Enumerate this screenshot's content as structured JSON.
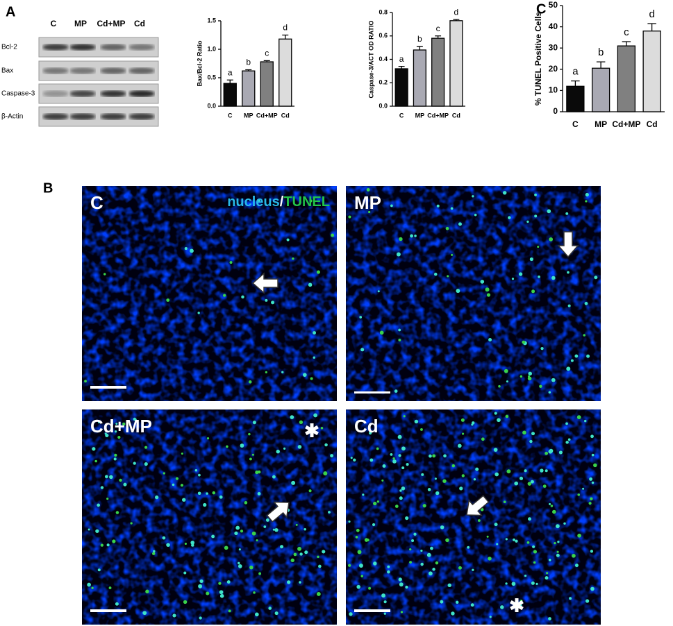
{
  "panels": {
    "a": "A",
    "b": "B",
    "c": "C"
  },
  "blot": {
    "columns": [
      "C",
      "MP",
      "Cd+MP",
      "Cd"
    ],
    "rows": [
      "Bcl-2",
      "Bax",
      "Caspase-3",
      "β-Actin"
    ]
  },
  "micrographs": {
    "labels": [
      "C",
      "MP",
      "Cd+MP",
      "Cd"
    ],
    "legend": [
      "nucleus",
      "/",
      "TUNEL"
    ]
  },
  "chart_data": [
    {
      "type": "bar",
      "ylabel": "Bax/Bcl-2 Ratio",
      "categories": [
        "C",
        "MP",
        "Cd+MP",
        "Cd"
      ],
      "values": [
        0.4,
        0.62,
        0.78,
        1.18
      ],
      "errors": [
        0.06,
        0.02,
        0.02,
        0.07
      ],
      "annotations": [
        "a",
        "b",
        "c",
        "d"
      ],
      "colors": [
        "#0a0a0a",
        "#a9a9b3",
        "#808080",
        "#dcdcdc"
      ],
      "ylim": [
        0,
        1.5
      ],
      "yticks": [
        {
          "value": 0,
          "label": "0.0"
        },
        0.5,
        {
          "value": 1,
          "label": "1.0"
        },
        1.5
      ]
    },
    {
      "type": "bar",
      "ylabel": "Caspase-3/ACT OD RATIO",
      "categories": [
        "C",
        "MP",
        "Cd+MP",
        "Cd"
      ],
      "values": [
        0.32,
        0.48,
        0.58,
        0.73
      ],
      "errors": [
        0.02,
        0.03,
        0.02,
        0.01
      ],
      "annotations": [
        "a",
        "b",
        "c",
        "d"
      ],
      "colors": [
        "#0a0a0a",
        "#a9a9b3",
        "#808080",
        "#dcdcdc"
      ],
      "ylim": [
        0,
        0.8
      ],
      "yticks": [
        {
          "value": 0,
          "label": "0.0"
        },
        0.2,
        0.4,
        0.6,
        0.8
      ]
    },
    {
      "type": "bar",
      "ylabel": "% TUNEL Positive Cells",
      "categories": [
        "C",
        "MP",
        "Cd+MP",
        "Cd"
      ],
      "values": [
        12,
        20.5,
        31,
        38
      ],
      "errors": [
        2.5,
        3,
        2,
        3.5
      ],
      "annotations": [
        "a",
        "b",
        "c",
        "d"
      ],
      "colors": [
        "#0a0a0a",
        "#a9a9b3",
        "#808080",
        "#dcdcdc"
      ],
      "ylim": [
        0,
        50
      ],
      "yticks": [
        0,
        10,
        20,
        30,
        40,
        50
      ]
    }
  ]
}
